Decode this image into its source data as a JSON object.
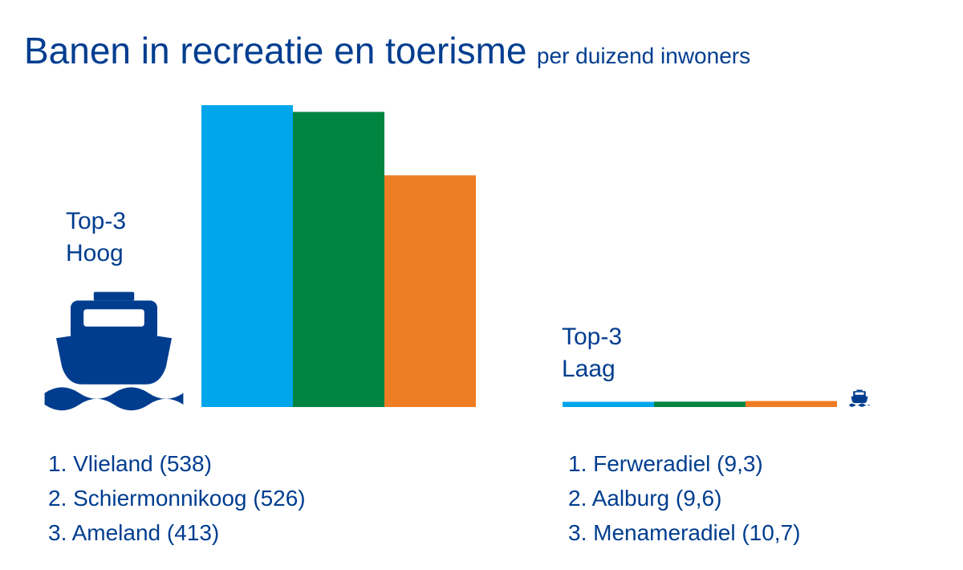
{
  "title": "Banen in recreatie en toerisme",
  "subtitle": "per duizend inwoners",
  "colors": {
    "text": "#003d8f",
    "blue": "#00a6ec",
    "green": "#008540",
    "orange": "#ef7d24"
  },
  "icons": {
    "boat": "ferry-boat-icon"
  },
  "chart_data": [
    {
      "type": "bar",
      "group_label": "Top-3 Hoog",
      "group_label_lines": [
        "Top-3",
        "Hoog"
      ],
      "categories": [
        "Vlieland",
        "Schiermonnikoog",
        "Ameland"
      ],
      "values": [
        538,
        526,
        413
      ],
      "colors": [
        "#00a6ec",
        "#008540",
        "#ef7d24"
      ],
      "legend": [
        "1. Vlieland (538)",
        "2. Schiermonnikoog (526)",
        "3. Ameland (413)"
      ]
    },
    {
      "type": "bar",
      "group_label": "Top-3 Laag",
      "group_label_lines": [
        "Top-3",
        "Laag"
      ],
      "categories": [
        "Ferweradiel",
        "Aalburg",
        "Menameradiel"
      ],
      "values": [
        9.3,
        9.6,
        10.7
      ],
      "colors": [
        "#00a6ec",
        "#008540",
        "#ef7d24"
      ],
      "legend": [
        "1. Ferweradiel (9,3)",
        "2. Aalburg (9,6)",
        "3. Menameradiel (10,7)"
      ]
    }
  ]
}
